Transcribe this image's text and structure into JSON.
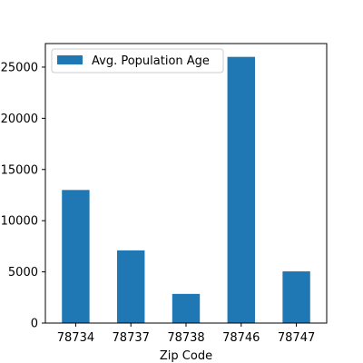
{
  "chart_data": {
    "type": "bar",
    "categories": [
      "78734",
      "78737",
      "78738",
      "78746",
      "78747"
    ],
    "series": [
      {
        "name": "Avg. Population Age",
        "values": [
          13000,
          7100,
          2850,
          26000,
          5050
        ]
      }
    ],
    "title": "",
    "xlabel": "Zip Code",
    "ylabel": "",
    "ylim": [
      0,
      27300
    ],
    "yticks": [
      0,
      5000,
      10000,
      15000,
      20000,
      25000
    ],
    "ytick_labels": [
      "0",
      "5000",
      "10000",
      "15000",
      "20000",
      "25000"
    ],
    "grid": false,
    "legend": "top-left",
    "colors": {
      "bar": "#1f77b4"
    }
  }
}
